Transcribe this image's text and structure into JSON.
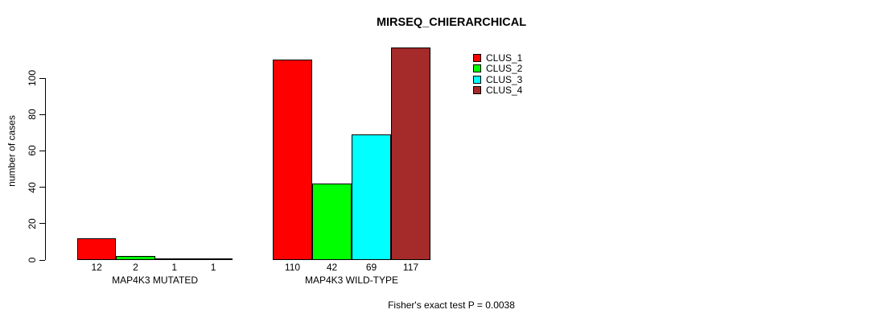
{
  "chart_data": {
    "type": "bar",
    "title": "MIRSEQ_CHIERARCHICAL",
    "xlabel": "",
    "ylabel": "number of cases",
    "categories": [
      "MAP4K3 MUTATED",
      "MAP4K3 WILD-TYPE"
    ],
    "series": [
      {
        "name": "CLUS_1",
        "color": "#ff0000",
        "values": [
          12,
          110
        ]
      },
      {
        "name": "CLUS_2",
        "color": "#00ff00",
        "values": [
          2,
          42
        ]
      },
      {
        "name": "CLUS_3",
        "color": "#00ffff",
        "values": [
          1,
          69
        ]
      },
      {
        "name": "CLUS_4",
        "color": "#a52a2a",
        "values": [
          1,
          117
        ]
      }
    ],
    "bar_value_labels": [
      [
        "12",
        "2",
        "1",
        "1"
      ],
      [
        "110",
        "42",
        "69",
        "117"
      ]
    ],
    "yticks": [
      0,
      20,
      40,
      60,
      80,
      100
    ],
    "ylim": [
      0,
      120
    ],
    "grid": false,
    "legend_position": "top-right",
    "legend_entries": [
      "CLUS_1",
      "CLUS_2",
      "CLUS_3",
      "CLUS_4"
    ],
    "annotation": "Fisher's exact test P = 0.0038"
  },
  "colors": {
    "axis": "#000000",
    "text": "#000000",
    "background": "#ffffff"
  }
}
